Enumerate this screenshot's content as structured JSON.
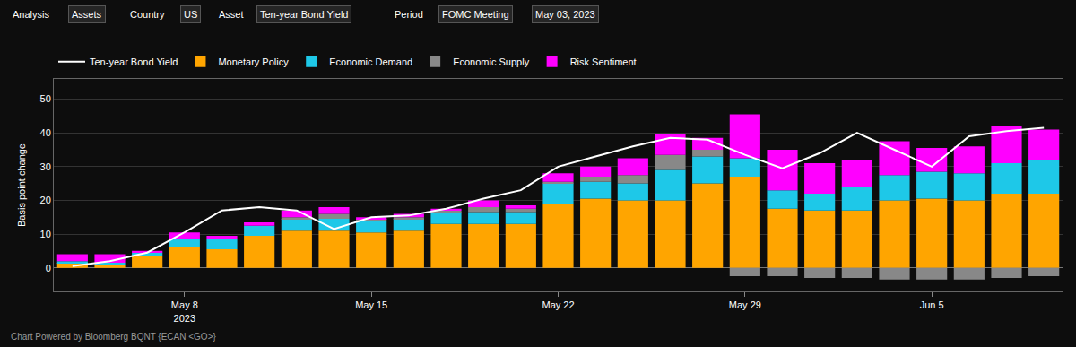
{
  "chart_data": {
    "type": "bar",
    "stacked": true,
    "grid": true,
    "legend": "top left",
    "ylabel": "Basis point change",
    "annotations": [
      "Analysis",
      "Assets",
      "Country",
      "US",
      "Asset",
      "Ten-year Bond Yield",
      "Period",
      "FOMC Meeting",
      "May 03, 2023",
      "Chart Powered by Bloomberg BQNT {ECAN <GO>}"
    ],
    "categories": [
      null,
      null,
      null,
      "May 8\n2023",
      null,
      null,
      null,
      null,
      "May 15",
      null,
      null,
      null,
      null,
      "May 22",
      null,
      null,
      null,
      null,
      "May 29",
      null,
      null,
      null,
      null,
      "Jun 5",
      null,
      null,
      null
    ],
    "ylim": [
      -7,
      56
    ],
    "yticks": [
      0,
      10,
      20,
      30,
      40,
      50
    ],
    "series": [
      {
        "name": "Ten-year Bond Yield",
        "type": "line",
        "color": "#ffffff",
        "values": [
          0.5,
          2.0,
          4.5,
          10.5,
          17.0,
          18.0,
          17.0,
          11.5,
          15.0,
          15.5,
          17.5,
          20.5,
          23.0,
          30.0,
          33.0,
          36.0,
          38.5,
          38.0,
          33.5,
          29.5,
          34.0,
          40.0,
          35.0,
          30.0,
          39.0,
          40.5,
          41.5
        ]
      },
      {
        "name": "Monetary Policy",
        "type": "bar",
        "color": "#FFA500",
        "values": [
          1.5,
          1.0,
          3.5,
          6.0,
          5.5,
          9.5,
          11.0,
          11.0,
          10.5,
          11.0,
          13.0,
          13.0,
          13.0,
          19.0,
          20.5,
          20.0,
          20.0,
          25.0,
          27.0,
          17.5,
          17.0,
          17.0,
          20.0,
          20.5,
          20.0,
          22.0,
          22.0
        ]
      },
      {
        "name": "Economic Demand",
        "type": "bar",
        "color": "#1EC8E8",
        "values": [
          0.5,
          0.5,
          1.0,
          2.5,
          3.0,
          3.0,
          3.5,
          3.5,
          3.5,
          3.5,
          3.5,
          3.5,
          3.5,
          6.0,
          5.0,
          5.0,
          9.0,
          8.0,
          5.5,
          5.5,
          5.0,
          7.0,
          7.5,
          8.0,
          8.0,
          9.0,
          10.0
        ]
      },
      {
        "name": "Economic Supply",
        "type": "bar",
        "color": "#888888",
        "values": [
          0.0,
          0.0,
          0.0,
          0.0,
          0.0,
          0.0,
          0.5,
          1.5,
          0.5,
          0.5,
          0.5,
          1.5,
          1.0,
          0.5,
          1.5,
          2.5,
          4.5,
          2.0,
          -2.5,
          -2.5,
          -3.0,
          -3.0,
          -3.5,
          -3.5,
          -3.5,
          -3.0,
          -2.5
        ]
      },
      {
        "name": "Risk Sentiment",
        "type": "bar",
        "color": "#FF00FF",
        "values": [
          2.0,
          2.5,
          0.5,
          2.0,
          1.0,
          1.0,
          2.0,
          2.0,
          0.5,
          1.0,
          0.5,
          2.0,
          1.0,
          2.5,
          3.0,
          5.0,
          6.0,
          3.5,
          13.0,
          12.0,
          9.0,
          8.0,
          10.0,
          7.0,
          8.0,
          11.0,
          9.0
        ]
      }
    ]
  }
}
